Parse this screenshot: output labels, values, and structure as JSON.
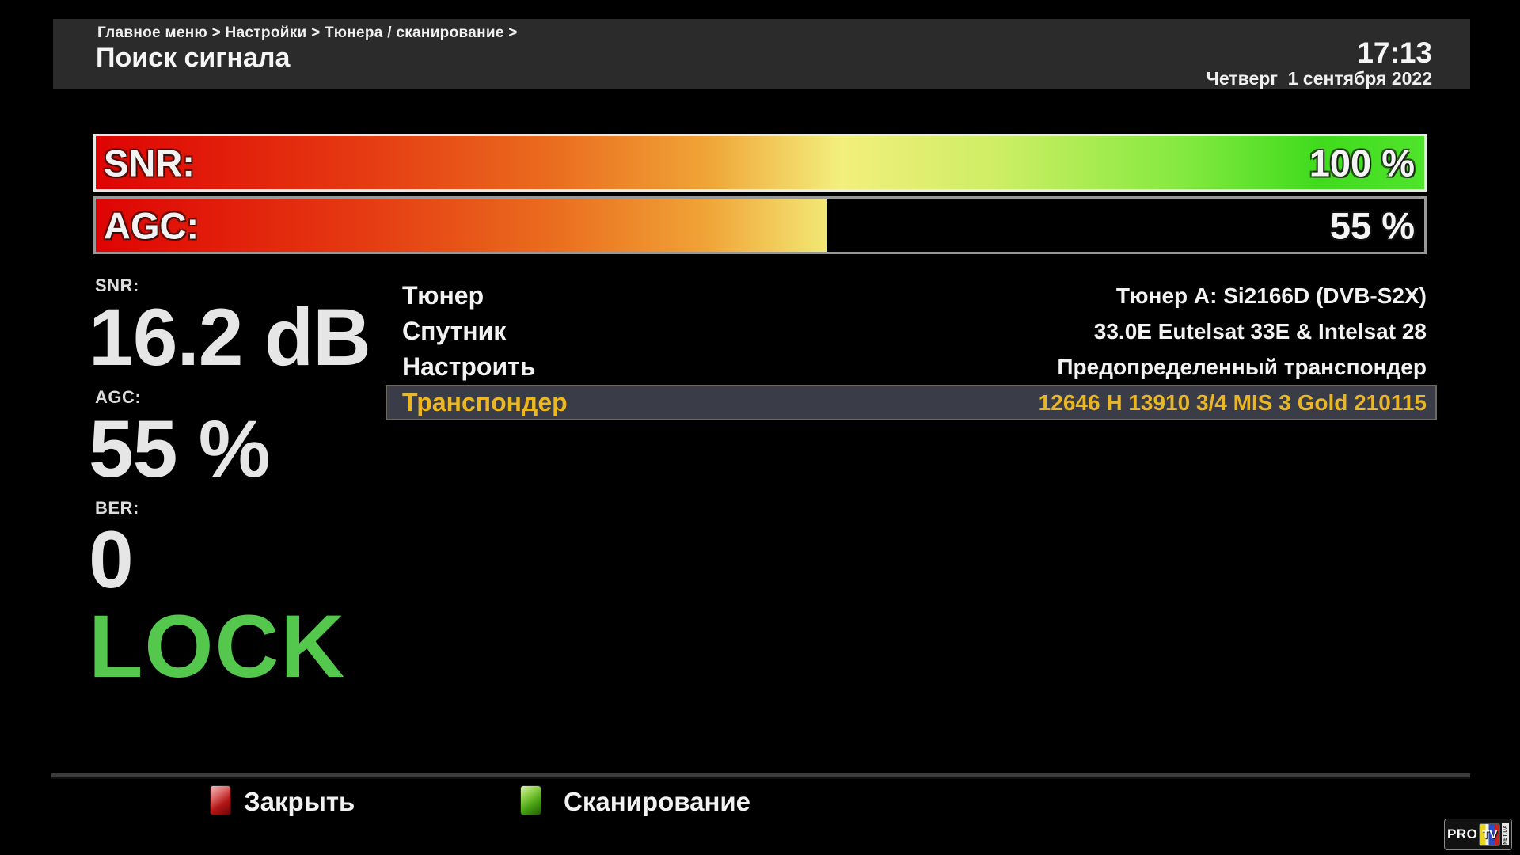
{
  "header": {
    "breadcrumb": "Главное меню > Настройки > Тюнера / сканирование >",
    "title": "Поиск сигнала",
    "time": "17:13",
    "date": "Четверг  1 сентября 2022"
  },
  "bars": {
    "snr": {
      "label": "SNR:",
      "value_text": "100 %",
      "percent": 100
    },
    "agc": {
      "label": "AGC:",
      "value_text": "55 %",
      "percent": 55
    }
  },
  "readings": [
    {
      "label": "SNR:",
      "value": "16.2 dB"
    },
    {
      "label": "AGC:",
      "value": "55 %"
    },
    {
      "label": "BER:",
      "value": "0"
    }
  ],
  "lock_status": "LOCK",
  "settings_rows": [
    {
      "label": "Тюнер",
      "value": "Тюнер A: Si2166D (DVB-S2X)",
      "selected": false
    },
    {
      "label": "Спутник",
      "value": "33.0E Eutelsat 33E & Intelsat 28",
      "selected": false
    },
    {
      "label": "Настроить",
      "value": "Предопределенный транспондер",
      "selected": false
    },
    {
      "label": "Транспондер",
      "value": "12646 H 13910 3/4 MIS 3 Gold 210115",
      "selected": true
    }
  ],
  "footer": {
    "buttons": [
      {
        "color_key": "red",
        "label": "Закрыть"
      },
      {
        "color_key": "green",
        "label": "Сканирование"
      }
    ]
  },
  "logo": {
    "text_pro": "PRO",
    "text_tv": "TV",
    "text_net": "NET.UA"
  },
  "colors": {
    "accent_yellow": "#edb81f",
    "lock_green": "#54c74d",
    "selected_row_bg": "#3a3d47",
    "header_bg": "#2b2b2b",
    "red_key": "#b31616",
    "green_key": "#4ba313"
  }
}
